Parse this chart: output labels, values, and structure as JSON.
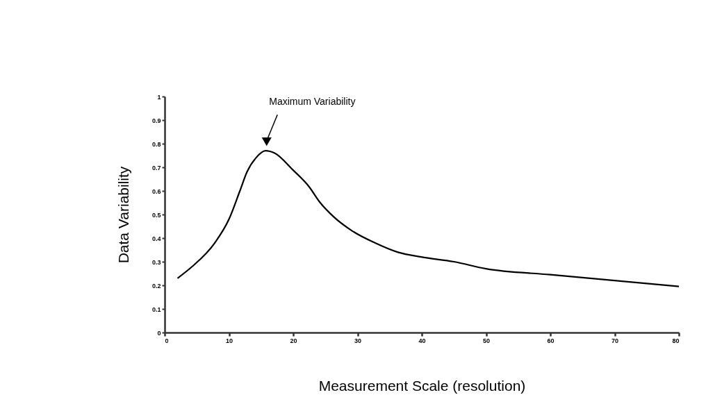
{
  "chart_data": {
    "type": "line",
    "xlabel": "Measurement Scale (resolution)",
    "ylabel": "Data Variability",
    "x": [
      2,
      4.3,
      7.8,
      10,
      11.7,
      12.8,
      14.2,
      15.7,
      17.1,
      19.9,
      22.4,
      24.2,
      26.3,
      29.2,
      32.7,
      36.3,
      39.9,
      45,
      50,
      60,
      70,
      80
    ],
    "series": [
      {
        "color": "#000000",
        "values": [
          0.23,
          0.28,
          0.38,
          0.48,
          0.6,
          0.68,
          0.74,
          0.77,
          0.76,
          0.69,
          0.62,
          0.55,
          0.49,
          0.43,
          0.38,
          0.34,
          0.32,
          0.3,
          0.27,
          0.245,
          0.22,
          0.195
        ]
      }
    ],
    "annotations": [
      "Maximum Variability"
    ],
    "xlim": [
      0,
      80
    ],
    "xticks": [
      0,
      10,
      20,
      30,
      40,
      50,
      60,
      70,
      80
    ],
    "ylim": [
      0,
      1
    ],
    "yticks": [
      0,
      0.1,
      0.2,
      0.3,
      0.4,
      0.5,
      0.6,
      0.7,
      0.8,
      0.9,
      1
    ],
    "grid": false,
    "marker": "none",
    "line_style": "solid"
  }
}
